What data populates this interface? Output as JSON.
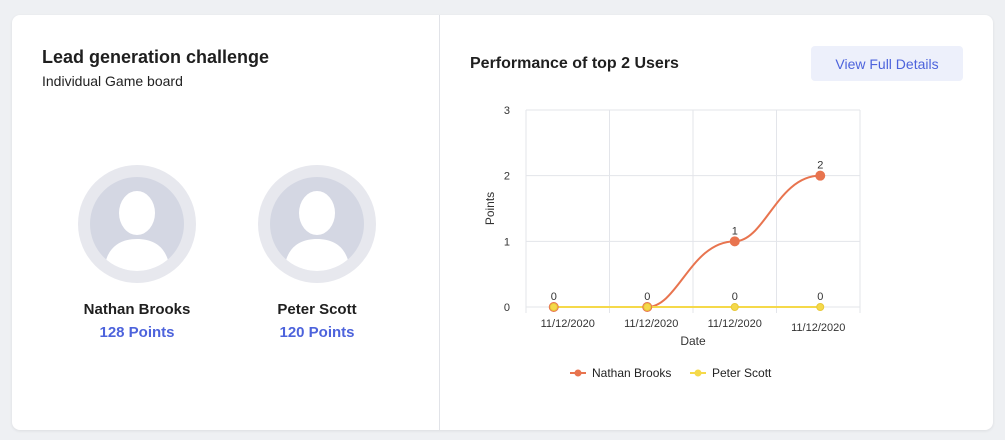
{
  "left_panel": {
    "title": "Lead generation challenge",
    "subtitle": "Individual Game board",
    "users": [
      {
        "name": "Nathan Brooks",
        "points": "128 Points"
      },
      {
        "name": "Peter Scott",
        "points": "120 Points"
      }
    ]
  },
  "right_panel": {
    "title": "Performance of top 2 Users",
    "details_button_label": "View Full Details"
  },
  "colors": {
    "accent": "#4d63dc",
    "series_1": "#e8744f",
    "series_2": "#f5d94a"
  },
  "chart_data": {
    "type": "line",
    "xlabel": "Date",
    "ylabel": "Points",
    "ylim": [
      0,
      3
    ],
    "yticks": [
      0,
      1,
      2,
      3
    ],
    "categories": [
      "11/12/2020",
      "11/12/2020",
      "11/12/2020",
      "11/12/2020"
    ],
    "grid": true,
    "legend_position": "bottom-center",
    "series": [
      {
        "name": "Nathan Brooks",
        "values": [
          0,
          0,
          1,
          2
        ],
        "labels": [
          "0",
          "0",
          "1",
          "2"
        ]
      },
      {
        "name": "Peter Scott",
        "values": [
          0,
          0,
          0,
          0
        ],
        "labels": [
          "0",
          "0",
          "0",
          "0"
        ]
      }
    ]
  }
}
